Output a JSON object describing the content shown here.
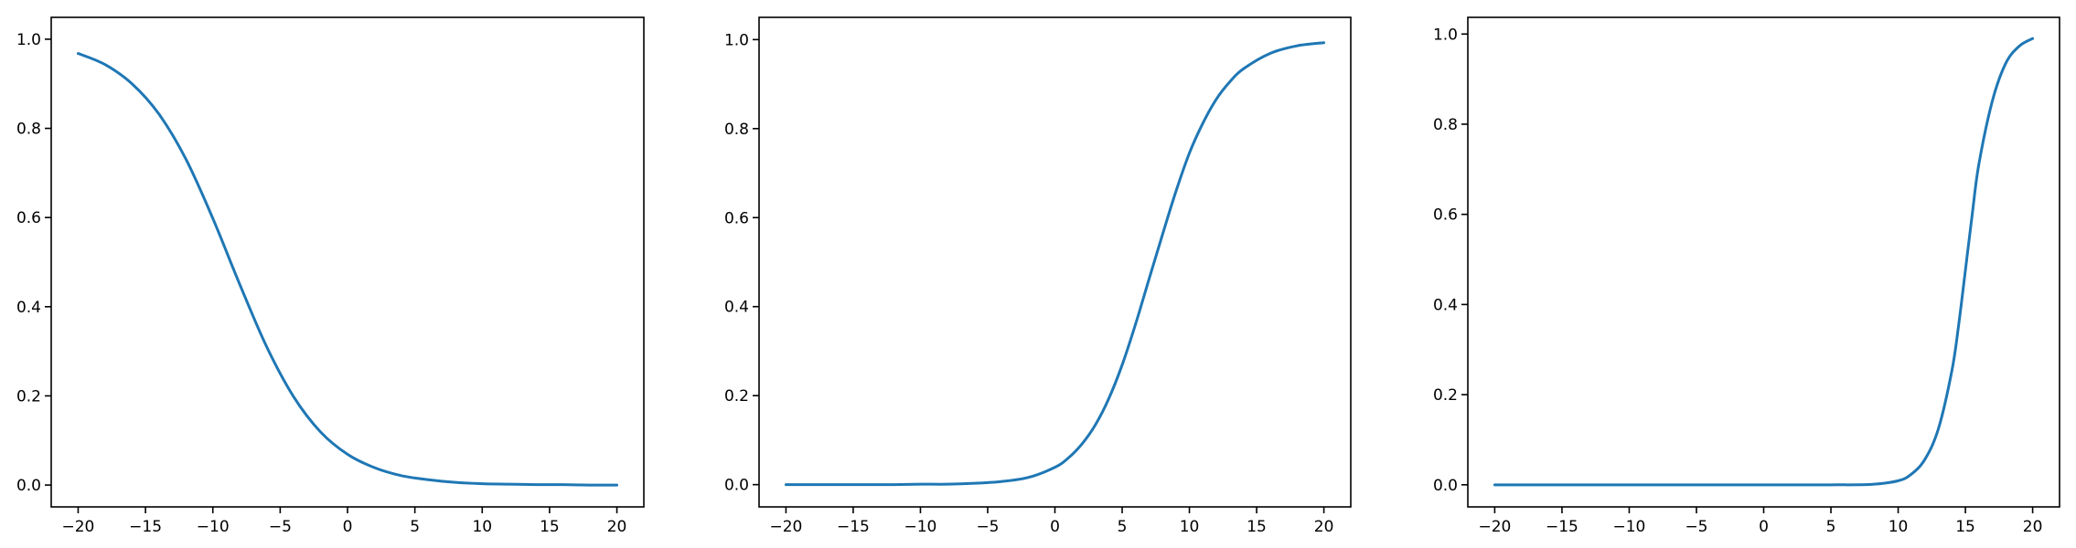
{
  "chart_data": [
    {
      "type": "line",
      "title": "",
      "xlabel": "",
      "ylabel": "",
      "xlim": [
        -22,
        22
      ],
      "ylim": [
        -0.049,
        1.049
      ],
      "xticks": [
        -20,
        -15,
        -10,
        -5,
        0,
        5,
        10,
        15,
        20
      ],
      "xtick_labels": [
        "−20",
        "−15",
        "−10",
        "−5",
        "0",
        "5",
        "10",
        "15",
        "20"
      ],
      "yticks": [
        0.0,
        0.2,
        0.4,
        0.6,
        0.8,
        1.0
      ],
      "ytick_labels": [
        "0.0",
        "0.2",
        "0.4",
        "0.6",
        "0.8",
        "1.0"
      ],
      "grid": false,
      "series": [
        {
          "color": "#1f77b4",
          "x": [
            -20,
            -18,
            -16,
            -14,
            -12,
            -10,
            -8,
            -6,
            -4,
            -2,
            0,
            2,
            4,
            6,
            8,
            10,
            12,
            14,
            16,
            18,
            20
          ],
          "y": [
            0.968,
            0.943,
            0.9,
            0.832,
            0.731,
            0.598,
            0.45,
            0.31,
            0.198,
            0.119,
            0.069,
            0.039,
            0.021,
            0.012,
            0.006,
            0.003,
            0.002,
            0.001,
            0.001,
            0.0,
            0.0
          ]
        }
      ]
    },
    {
      "type": "line",
      "title": "",
      "xlabel": "",
      "ylabel": "",
      "xlim": [
        -22,
        22
      ],
      "ylim": [
        -0.05,
        1.05
      ],
      "xticks": [
        -20,
        -15,
        -10,
        -5,
        0,
        5,
        10,
        15,
        20
      ],
      "xtick_labels": [
        "−20",
        "−15",
        "−10",
        "−5",
        "0",
        "5",
        "10",
        "15",
        "20"
      ],
      "yticks": [
        0.0,
        0.2,
        0.4,
        0.6,
        0.8,
        1.0
      ],
      "ytick_labels": [
        "0.0",
        "0.2",
        "0.4",
        "0.6",
        "0.8",
        "1.0"
      ],
      "grid": false,
      "series": [
        {
          "color": "#1f77b4",
          "x": [
            -20,
            -18,
            -16,
            -14,
            -12,
            -10,
            -8,
            -6,
            -4,
            -2,
            0,
            1,
            2,
            3,
            4,
            5,
            6,
            7,
            8,
            9,
            10,
            11,
            12,
            13,
            14,
            16,
            18,
            20
          ],
          "y": [
            0.0,
            0.0,
            0.0,
            0.0,
            0.0,
            0.001,
            0.001,
            0.003,
            0.007,
            0.016,
            0.039,
            0.06,
            0.091,
            0.134,
            0.193,
            0.269,
            0.361,
            0.462,
            0.562,
            0.659,
            0.745,
            0.812,
            0.866,
            0.905,
            0.934,
            0.969,
            0.986,
            0.993
          ]
        }
      ]
    },
    {
      "type": "line",
      "title": "",
      "xlabel": "",
      "ylabel": "",
      "xlim": [
        -22,
        22
      ],
      "ylim": [
        -0.049,
        1.037
      ],
      "xticks": [
        -20,
        -15,
        -10,
        -5,
        0,
        5,
        10,
        15,
        20
      ],
      "xtick_labels": [
        "−20",
        "−15",
        "−10",
        "−5",
        "0",
        "5",
        "10",
        "15",
        "20"
      ],
      "yticks": [
        0.0,
        0.2,
        0.4,
        0.6,
        0.8,
        1.0
      ],
      "ytick_labels": [
        "0.0",
        "0.2",
        "0.4",
        "0.6",
        "0.8",
        "1.0"
      ],
      "grid": false,
      "series": [
        {
          "color": "#1f77b4",
          "x": [
            -20,
            -15,
            -10,
            -5,
            0,
            5,
            8,
            10,
            11,
            12,
            13,
            14,
            14.5,
            15,
            15.5,
            16,
            17,
            18,
            19,
            20
          ],
          "y": [
            0.0,
            0.0,
            0.0,
            0.0,
            0.0,
            0.0,
            0.001,
            0.009,
            0.024,
            0.057,
            0.125,
            0.254,
            0.355,
            0.476,
            0.598,
            0.711,
            0.851,
            0.935,
            0.973,
            0.99
          ]
        }
      ]
    }
  ]
}
